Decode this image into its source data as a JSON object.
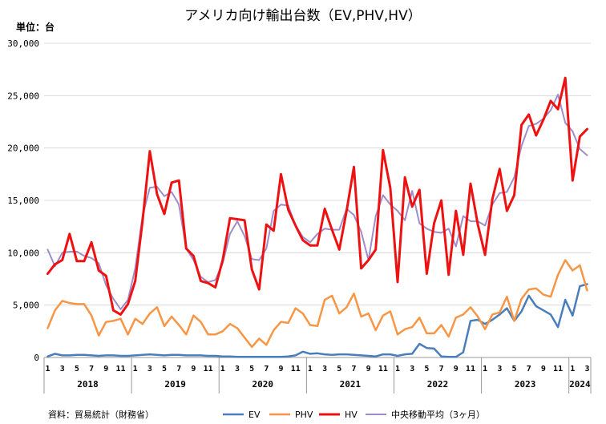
{
  "chart_data": {
    "type": "line",
    "title": "アメリカ向け輸出台数（EV,PHV,HV）",
    "unit_label": "単位：台",
    "source": "資料：貿易統計（財務省）",
    "ylim": [
      0,
      30000
    ],
    "yticks": [
      0,
      5000,
      10000,
      15000,
      20000,
      25000,
      30000
    ],
    "ytick_labels": [
      "0",
      "5,000",
      "10,000",
      "15,000",
      "20,000",
      "25,000",
      "30,000"
    ],
    "month_ticks": [
      "1",
      "3",
      "5",
      "7",
      "9",
      "11",
      "1",
      "3",
      "5",
      "7",
      "9",
      "11",
      "1",
      "3",
      "5",
      "7",
      "9",
      "11",
      "1",
      "3",
      "5",
      "7",
      "9",
      "11",
      "1",
      "3",
      "5",
      "7",
      "9",
      "11",
      "1",
      "3",
      "5",
      "7",
      "9",
      "11",
      "1",
      "3"
    ],
    "years": [
      "2018",
      "2019",
      "2020",
      "2021",
      "2022",
      "2023",
      "2024"
    ],
    "grid": true,
    "legend_position": "bottom",
    "series": [
      {
        "name": "EV",
        "color": "#4a7ebb",
        "values": [
          100,
          350,
          200,
          200,
          250,
          250,
          200,
          150,
          200,
          200,
          150,
          150,
          200,
          250,
          300,
          250,
          200,
          250,
          250,
          200,
          200,
          200,
          150,
          150,
          100,
          100,
          50,
          50,
          50,
          50,
          50,
          50,
          50,
          100,
          200,
          550,
          350,
          400,
          300,
          250,
          300,
          300,
          250,
          200,
          150,
          100,
          300,
          300,
          150,
          300,
          350,
          1300,
          900,
          850,
          100,
          50,
          50,
          500,
          3500,
          3600,
          3200,
          3600,
          4100,
          4700,
          3500,
          4400,
          5900,
          4900,
          4500,
          4100,
          2900,
          5500,
          4000,
          6800,
          7000
        ]
      },
      {
        "name": "PHV",
        "color": "#f79646",
        "values": [
          2800,
          4500,
          5400,
          5200,
          5100,
          5100,
          4000,
          2100,
          3400,
          3500,
          3700,
          2200,
          3700,
          3200,
          4200,
          4800,
          3000,
          3900,
          3100,
          2200,
          4000,
          3400,
          2200,
          2200,
          2500,
          3200,
          2800,
          1900,
          1000,
          1800,
          1200,
          2600,
          3400,
          3300,
          4700,
          4200,
          3100,
          3000,
          5500,
          5900,
          4200,
          4800,
          6100,
          3900,
          4200,
          2600,
          4000,
          4400,
          2200,
          2700,
          2900,
          3800,
          2300,
          2300,
          3100,
          2000,
          3800,
          4100,
          4800,
          3900,
          2700,
          4100,
          4300,
          5800,
          3500,
          5600,
          6500,
          6600,
          6000,
          5800,
          7900,
          9300,
          8300,
          8800,
          6400
        ]
      },
      {
        "name": "HV",
        "color": "#ee1111",
        "values": [
          8000,
          8900,
          9300,
          11800,
          9200,
          9200,
          11000,
          8300,
          7800,
          4500,
          4100,
          5100,
          7300,
          13000,
          19700,
          15600,
          13700,
          16700,
          16900,
          10400,
          9700,
          7300,
          7100,
          6700,
          9300,
          13300,
          13200,
          13100,
          8400,
          6500,
          12700,
          12100,
          17500,
          14100,
          12600,
          11200,
          10700,
          10700,
          14200,
          12200,
          10300,
          14000,
          18200,
          8500,
          9300,
          10300,
          19800,
          16200,
          7200,
          17200,
          14400,
          16000,
          8000,
          12800,
          15000,
          7900,
          14000,
          9800,
          16600,
          12700,
          9800,
          15100,
          18000,
          14000,
          15500,
          22200,
          23200,
          21200,
          22700,
          24500,
          23700,
          26700,
          16900,
          21100,
          21800
        ]
      },
      {
        "name": "中央移動平均（3ヶ月）",
        "color": "#a08cc8",
        "values": [
          10300,
          8700,
          10000,
          10100,
          10100,
          9700,
          9500,
          9000,
          6900,
          5600,
          4600,
          5500,
          8500,
          13500,
          16200,
          16300,
          15400,
          15800,
          14600,
          10400,
          9300,
          7700,
          7200,
          7400,
          9000,
          11800,
          13000,
          11600,
          9400,
          9300,
          10400,
          14000,
          14600,
          14500,
          12600,
          11500,
          11000,
          11800,
          12300,
          12200,
          12200,
          14200,
          13600,
          12000,
          9300,
          13500,
          15500,
          14600,
          14000,
          13100,
          15900,
          12800,
          12300,
          12000,
          11900,
          12300,
          10600,
          13500,
          13000,
          13000,
          12600,
          14600,
          15700,
          15800,
          17200,
          20200,
          22100,
          22300,
          22800,
          23600,
          25100,
          22400,
          21600,
          19900,
          19300
        ]
      }
    ]
  }
}
